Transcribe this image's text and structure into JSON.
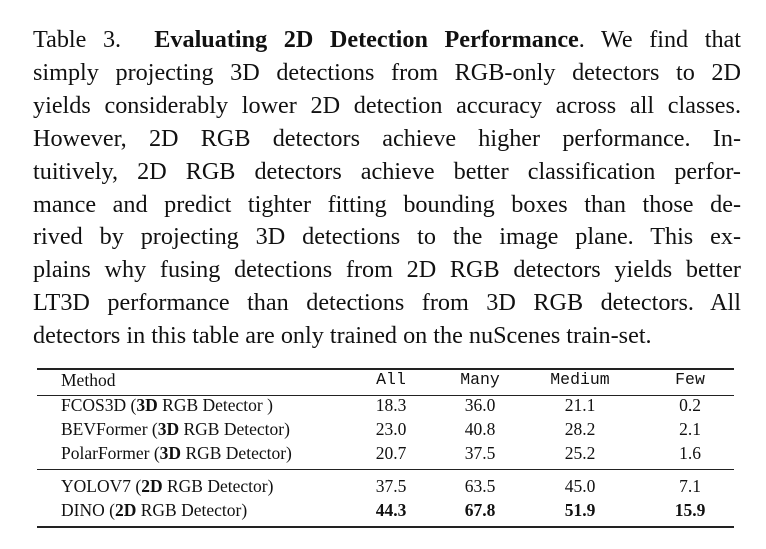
{
  "caption": {
    "label": "Table 3.",
    "title": "Evaluating 2D Detection Performance",
    "lines": [
      ". We find that",
      "simply projecting 3D detections from RGB-only detectors to 2D",
      "yields considerably lower 2D detection accuracy across all classes.",
      "However, 2D RGB detectors achieve higher performance. In-",
      "tuitively, 2D RGB detectors achieve better classification perfor-",
      "mance and predict tighter fitting bounding boxes than those de-",
      "rived by projecting 3D detections to the image plane. This ex-",
      "plains why fusing detections from 2D RGB detectors yields better",
      "LT3D performance than detections from 3D RGB detectors. All",
      "detectors in this table are only trained on the nuScenes train-set."
    ]
  },
  "table": {
    "headers": [
      "Method",
      "All",
      "Many",
      "Medium",
      "Few"
    ],
    "rows": [
      {
        "name": "FCOS3D",
        "kind": "3D",
        "suffix": " RGB Detector )",
        "values": [
          "18.3",
          "36.0",
          "21.1",
          "0.2"
        ]
      },
      {
        "name": "BEVFormer",
        "kind": "3D",
        "suffix": " RGB Detector)",
        "values": [
          "23.0",
          "40.8",
          "28.2",
          "2.1"
        ]
      },
      {
        "name": "PolarFormer",
        "kind": "3D",
        "suffix": " RGB Detector)",
        "values": [
          "20.7",
          "37.5",
          "25.2",
          "1.6"
        ]
      },
      {
        "name": "YOLOV7",
        "kind": "2D",
        "suffix": " RGB Detector)",
        "values": [
          "37.5",
          "63.5",
          "45.0",
          "7.1"
        ]
      },
      {
        "name": "DINO",
        "kind": "2D",
        "suffix": " RGB Detector)",
        "values": [
          "44.3",
          "67.8",
          "51.9",
          "15.9"
        ]
      }
    ]
  }
}
